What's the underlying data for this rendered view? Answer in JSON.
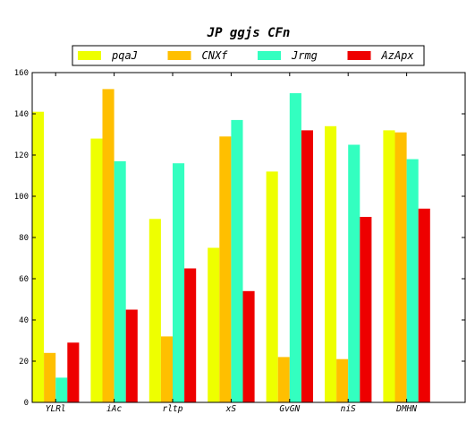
{
  "chart_data": {
    "type": "bar",
    "title": "JP ggjs CFn",
    "xlabel": "",
    "ylabel": "",
    "ylim": [
      0,
      160
    ],
    "yticks": [
      0,
      20,
      40,
      60,
      80,
      100,
      120,
      140,
      160
    ],
    "legend_position": "top",
    "grid": false,
    "categories": [
      "YLRl",
      "iAc",
      "rltp",
      "xS",
      "GvGN",
      "niS",
      "DMHN"
    ],
    "series": [
      {
        "name": "pqaJ",
        "color": "#eeff00",
        "values": [
          141,
          128,
          89,
          75,
          112,
          134,
          132
        ]
      },
      {
        "name": "CNXf",
        "color": "#ffbf00",
        "values": [
          24,
          152,
          32,
          129,
          22,
          21,
          131
        ]
      },
      {
        "name": "Jrmg",
        "color": "#33ffc0",
        "values": [
          12,
          117,
          116,
          137,
          150,
          125,
          118
        ]
      },
      {
        "name": "AzApx",
        "color": "#ee0000",
        "values": [
          29,
          45,
          65,
          54,
          132,
          90,
          94
        ]
      }
    ]
  }
}
